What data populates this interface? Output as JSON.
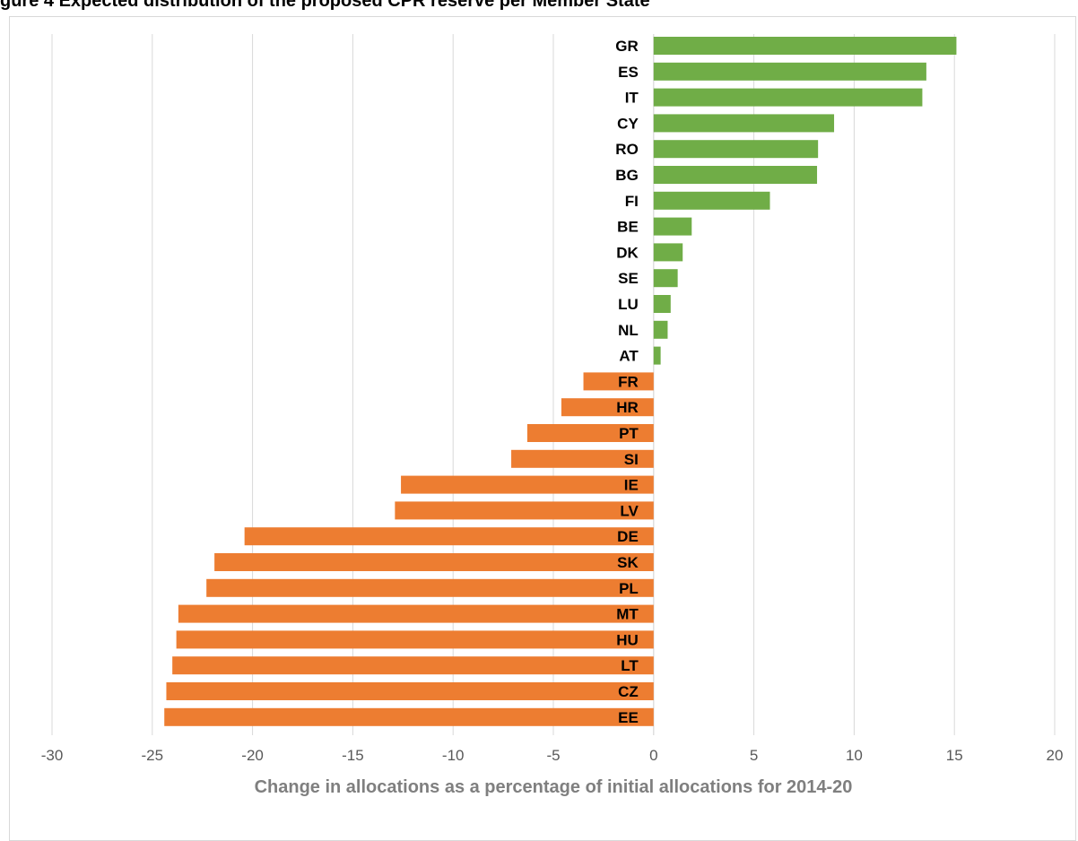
{
  "title": "gure 4 Expected distribution of the proposed CPR reserve per Member State",
  "chart_data": {
    "type": "bar",
    "orientation": "horizontal",
    "xlabel": "Change in allocations as a percentage of initial allocations for 2014-20",
    "ylabel": "",
    "xlim": [
      -30,
      20
    ],
    "xticks": [
      -30,
      -25,
      -20,
      -15,
      -10,
      -5,
      0,
      5,
      10,
      15,
      20
    ],
    "grid": true,
    "colors": {
      "positive": "#70ad47",
      "negative": "#ed7d31",
      "grid": "#d9d9d9"
    },
    "categories": [
      "GR",
      "ES",
      "IT",
      "CY",
      "RO",
      "BG",
      "FI",
      "BE",
      "DK",
      "SE",
      "LU",
      "NL",
      "AT",
      "FR",
      "HR",
      "PT",
      "SI",
      "IE",
      "LV",
      "DE",
      "SK",
      "PL",
      "MT",
      "HU",
      "LT",
      "CZ",
      "EE"
    ],
    "values": [
      15.1,
      13.6,
      13.4,
      9.0,
      8.2,
      8.15,
      5.8,
      1.9,
      1.45,
      1.2,
      0.85,
      0.7,
      0.35,
      -3.5,
      -4.6,
      -6.3,
      -7.1,
      -12.6,
      -12.9,
      -20.4,
      -21.9,
      -22.3,
      -23.7,
      -23.8,
      -24.0,
      -24.3,
      -24.4
    ]
  }
}
